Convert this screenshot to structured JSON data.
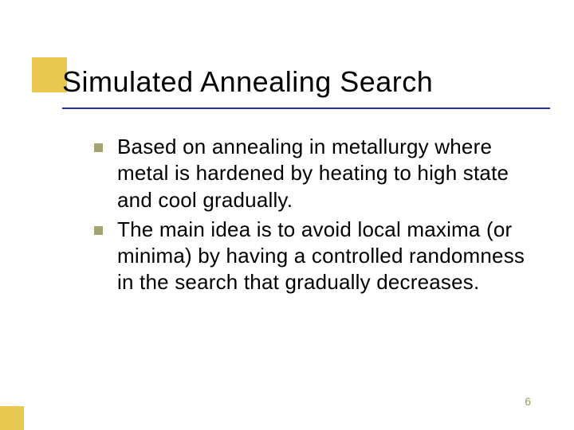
{
  "slide": {
    "title": "Simulated Annealing Search",
    "bullets": [
      "Based on annealing in metallurgy where metal is hardened by heating to high state and cool gradually.",
      "The main idea is to avoid local maxima (or minima) by having a controlled randomness in the search that gradually decreases."
    ],
    "page_number": "6"
  },
  "style": {
    "accent_color": "#e8c850",
    "rule_color": "#2e2ea0",
    "bullet_color": "#a3a374",
    "title_fontsize": 36,
    "body_fontsize": 26,
    "pagenum_color": "#9a9a68",
    "background": "#ffffff"
  }
}
